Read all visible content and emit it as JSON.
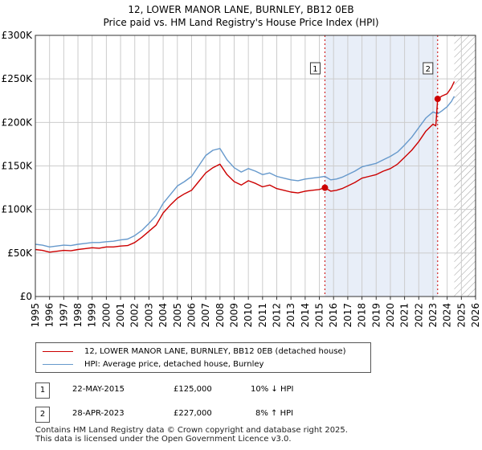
{
  "title_line1": "12, LOWER MANOR LANE, BURNLEY, BB12 0EB",
  "title_line2": "Price paid vs. HM Land Registry's House Price Index (HPI)",
  "colors": {
    "property": "#cc0000",
    "hpi": "#6699cc",
    "shade": "#e8eef8",
    "grid": "#cccccc",
    "marker": "#cc0000"
  },
  "chart_data": {
    "type": "line",
    "title": "Price paid vs. HM Land Registry's House Price Index (HPI)",
    "xlabel": "",
    "ylabel": "",
    "xlim": [
      1995,
      2026
    ],
    "ylim": [
      0,
      300000
    ],
    "x_ticks": [
      "1995",
      "1996",
      "1997",
      "1998",
      "1999",
      "2000",
      "2001",
      "2002",
      "2003",
      "2004",
      "2005",
      "2006",
      "2007",
      "2008",
      "2009",
      "2010",
      "2011",
      "2012",
      "2013",
      "2014",
      "2015",
      "2016",
      "2017",
      "2018",
      "2019",
      "2020",
      "2021",
      "2022",
      "2023",
      "2024",
      "2025",
      "2026"
    ],
    "y_ticks": [
      {
        "value": 0,
        "label": "£0"
      },
      {
        "value": 50000,
        "label": "£50K"
      },
      {
        "value": 100000,
        "label": "£100K"
      },
      {
        "value": 150000,
        "label": "£150K"
      },
      {
        "value": 200000,
        "label": "£200K"
      },
      {
        "value": 250000,
        "label": "£250K"
      },
      {
        "value": 300000,
        "label": "£300K"
      }
    ],
    "grid": true,
    "shaded_period": [
      2015.39,
      2023.33
    ],
    "future_hatch_start": 2024.5,
    "series": [
      {
        "name": "12, LOWER MANOR LANE, BURNLEY, BB12 0EB (detached house)",
        "color": "#cc0000",
        "points": [
          [
            1995.0,
            54000
          ],
          [
            1995.5,
            53000
          ],
          [
            1996.0,
            51000
          ],
          [
            1996.5,
            52000
          ],
          [
            1997.0,
            53000
          ],
          [
            1997.5,
            52500
          ],
          [
            1998.0,
            54000
          ],
          [
            1998.5,
            55000
          ],
          [
            1999.0,
            56000
          ],
          [
            1999.5,
            55500
          ],
          [
            2000.0,
            57000
          ],
          [
            2000.5,
            57000
          ],
          [
            2001.0,
            58000
          ],
          [
            2001.5,
            58500
          ],
          [
            2002.0,
            62000
          ],
          [
            2002.5,
            68000
          ],
          [
            2003.0,
            75000
          ],
          [
            2003.5,
            82000
          ],
          [
            2004.0,
            96000
          ],
          [
            2004.5,
            105000
          ],
          [
            2005.0,
            113000
          ],
          [
            2005.5,
            118000
          ],
          [
            2006.0,
            122000
          ],
          [
            2006.5,
            132000
          ],
          [
            2007.0,
            142000
          ],
          [
            2007.5,
            148000
          ],
          [
            2008.0,
            152000
          ],
          [
            2008.5,
            140000
          ],
          [
            2009.0,
            132000
          ],
          [
            2009.5,
            128000
          ],
          [
            2010.0,
            133000
          ],
          [
            2010.5,
            130000
          ],
          [
            2011.0,
            126000
          ],
          [
            2011.5,
            128000
          ],
          [
            2012.0,
            124000
          ],
          [
            2012.5,
            122000
          ],
          [
            2013.0,
            120000
          ],
          [
            2013.5,
            119000
          ],
          [
            2014.0,
            121000
          ],
          [
            2014.5,
            122000
          ],
          [
            2015.0,
            123000
          ],
          [
            2015.39,
            125000
          ],
          [
            2015.8,
            121000
          ],
          [
            2016.2,
            122000
          ],
          [
            2016.6,
            124000
          ],
          [
            2017.0,
            127000
          ],
          [
            2017.5,
            131000
          ],
          [
            2018.0,
            136000
          ],
          [
            2018.5,
            138000
          ],
          [
            2019.0,
            140000
          ],
          [
            2019.5,
            144000
          ],
          [
            2020.0,
            147000
          ],
          [
            2020.5,
            152000
          ],
          [
            2021.0,
            160000
          ],
          [
            2021.5,
            168000
          ],
          [
            2022.0,
            178000
          ],
          [
            2022.5,
            190000
          ],
          [
            2023.0,
            198000
          ],
          [
            2023.2,
            196000
          ],
          [
            2023.33,
            227000
          ],
          [
            2023.6,
            230000
          ],
          [
            2024.0,
            233000
          ],
          [
            2024.3,
            240000
          ],
          [
            2024.5,
            247000
          ]
        ]
      },
      {
        "name": "HPI: Average price, detached house, Burnley",
        "color": "#6699cc",
        "points": [
          [
            1995.0,
            60000
          ],
          [
            1995.5,
            59000
          ],
          [
            1996.0,
            57000
          ],
          [
            1996.5,
            58000
          ],
          [
            1997.0,
            59000
          ],
          [
            1997.5,
            58500
          ],
          [
            1998.0,
            60000
          ],
          [
            1998.5,
            61000
          ],
          [
            1999.0,
            62000
          ],
          [
            1999.5,
            62000
          ],
          [
            2000.0,
            63000
          ],
          [
            2000.5,
            63500
          ],
          [
            2001.0,
            65000
          ],
          [
            2001.5,
            66000
          ],
          [
            2002.0,
            70000
          ],
          [
            2002.5,
            76000
          ],
          [
            2003.0,
            84000
          ],
          [
            2003.5,
            93000
          ],
          [
            2004.0,
            107000
          ],
          [
            2004.5,
            117000
          ],
          [
            2005.0,
            127000
          ],
          [
            2005.5,
            132000
          ],
          [
            2006.0,
            138000
          ],
          [
            2006.5,
            150000
          ],
          [
            2007.0,
            162000
          ],
          [
            2007.5,
            168000
          ],
          [
            2008.0,
            170000
          ],
          [
            2008.5,
            157000
          ],
          [
            2009.0,
            148000
          ],
          [
            2009.5,
            143000
          ],
          [
            2010.0,
            147000
          ],
          [
            2010.5,
            144000
          ],
          [
            2011.0,
            140000
          ],
          [
            2011.5,
            142000
          ],
          [
            2012.0,
            138000
          ],
          [
            2012.5,
            136000
          ],
          [
            2013.0,
            134000
          ],
          [
            2013.5,
            133000
          ],
          [
            2014.0,
            135000
          ],
          [
            2014.5,
            136000
          ],
          [
            2015.0,
            137000
          ],
          [
            2015.39,
            138000
          ],
          [
            2015.8,
            134000
          ],
          [
            2016.2,
            135000
          ],
          [
            2016.6,
            137000
          ],
          [
            2017.0,
            140000
          ],
          [
            2017.5,
            144000
          ],
          [
            2018.0,
            149000
          ],
          [
            2018.5,
            151000
          ],
          [
            2019.0,
            153000
          ],
          [
            2019.5,
            157000
          ],
          [
            2020.0,
            161000
          ],
          [
            2020.5,
            166000
          ],
          [
            2021.0,
            174000
          ],
          [
            2021.5,
            183000
          ],
          [
            2022.0,
            194000
          ],
          [
            2022.5,
            205000
          ],
          [
            2023.0,
            212000
          ],
          [
            2023.33,
            210000
          ],
          [
            2023.6,
            213000
          ],
          [
            2024.0,
            218000
          ],
          [
            2024.3,
            224000
          ],
          [
            2024.5,
            230000
          ]
        ]
      }
    ],
    "sales": [
      {
        "label": "1",
        "x": 2015.39,
        "value": 125000
      },
      {
        "label": "2",
        "x": 2023.33,
        "value": 227000
      }
    ]
  },
  "legend": {
    "property_label": "12, LOWER MANOR LANE, BURNLEY, BB12 0EB (detached house)",
    "hpi_label": "HPI: Average price, detached house, Burnley"
  },
  "sales_table": [
    {
      "label": "1",
      "date": "22-MAY-2015",
      "price": "£125,000",
      "change": "10% ↓ HPI"
    },
    {
      "label": "2",
      "date": "28-APR-2023",
      "price": "£227,000",
      "change": "8% ↑ HPI"
    }
  ],
  "footer": {
    "line1": "Contains HM Land Registry data © Crown copyright and database right 2025.",
    "line2": "This data is licensed under the Open Government Licence v3.0."
  }
}
